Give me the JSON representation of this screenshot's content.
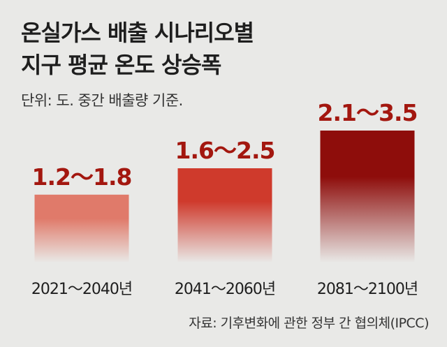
{
  "title_lines": [
    "온실가스 배출 시나리오별",
    "지구 평균 온도 상승폭"
  ],
  "unit_note": "단위: 도. 중간 배출량 기준.",
  "source": "자료: 기후변화에 관한 정부 간 협의체(IPCC)",
  "colors": {
    "bar_top": [
      "#e07a6a",
      "#cf3a2c",
      "#8e0d0b"
    ],
    "bar_bottom": "#e9e9e7",
    "value_label": "#a3170f",
    "category_label": "#1e1e1e"
  },
  "chart_data": {
    "type": "bar",
    "categories": [
      "2021～2040년",
      "2041～2060년",
      "2081～2100년"
    ],
    "series": [
      {
        "values": [
          [
            1.2,
            1.8
          ],
          [
            1.6,
            2.5
          ],
          [
            2.1,
            3.5
          ]
        ]
      }
    ],
    "value_labels": [
      "1.2～1.8",
      "1.6～2.5",
      "2.1～3.5"
    ],
    "ylim": [
      0,
      4
    ],
    "grid": false,
    "legend": "none"
  }
}
